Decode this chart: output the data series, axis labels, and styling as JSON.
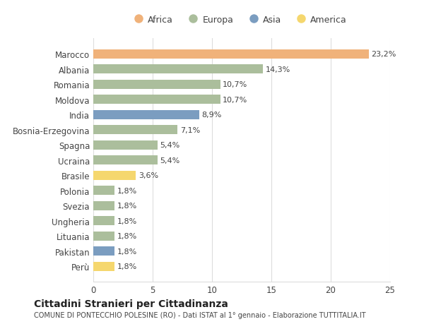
{
  "categories": [
    "Marocco",
    "Albania",
    "Romania",
    "Moldova",
    "India",
    "Bosnia-Erzegovina",
    "Spagna",
    "Ucraina",
    "Brasile",
    "Polonia",
    "Svezia",
    "Ungheria",
    "Lituania",
    "Pakistan",
    "Perù"
  ],
  "values": [
    23.2,
    14.3,
    10.7,
    10.7,
    8.9,
    7.1,
    5.4,
    5.4,
    3.6,
    1.8,
    1.8,
    1.8,
    1.8,
    1.8,
    1.8
  ],
  "continents": [
    "Africa",
    "Europa",
    "Europa",
    "Europa",
    "Asia",
    "Europa",
    "Europa",
    "Europa",
    "America",
    "Europa",
    "Europa",
    "Europa",
    "Europa",
    "Asia",
    "America"
  ],
  "colors": {
    "Africa": "#F0B27A",
    "Europa": "#ABBE9C",
    "Asia": "#7B9DC0",
    "America": "#F5D76E"
  },
  "legend_order": [
    "Africa",
    "Europa",
    "Asia",
    "America"
  ],
  "title": "Cittadini Stranieri per Cittadinanza",
  "subtitle": "COMUNE DI PONTECCHIO POLESINE (RO) - Dati ISTAT al 1° gennaio - Elaborazione TUTTITALIA.IT",
  "xlim": [
    0,
    25
  ],
  "xticks": [
    0,
    5,
    10,
    15,
    20,
    25
  ],
  "bg_color": "#ffffff",
  "bar_height": 0.6,
  "grid_color": "#dddddd"
}
